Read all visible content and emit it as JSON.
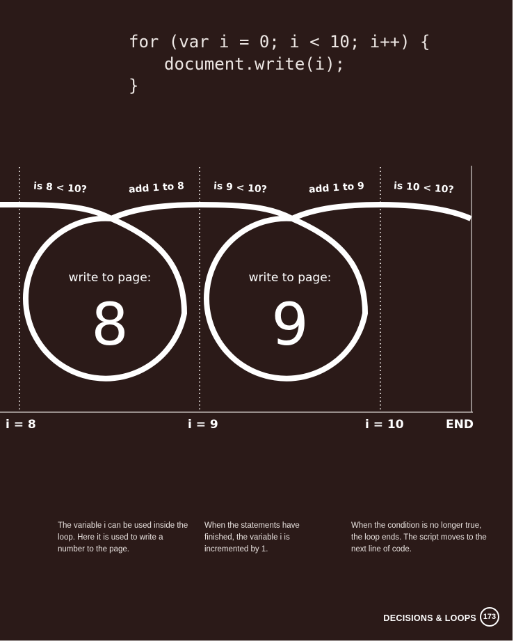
{
  "code": {
    "line1": "for (var i = 0; i < 10; i++) {",
    "line2": "document.write(i);",
    "line3": "}"
  },
  "diagram": {
    "conditions": [
      "is 8 < 10?",
      "is 9 < 10?",
      "is 10 < 10?"
    ],
    "increments": [
      "add 1 to 8",
      "add 1 to 9"
    ],
    "write_label": "write to page:",
    "written_values": [
      "8",
      "9"
    ],
    "i_values": [
      "i = 8",
      "i = 9",
      "i = 10"
    ],
    "end_label": "END"
  },
  "captions": [
    "The variable i can be used inside the loop. Here it is used to write a number to the page.",
    "When the statements have finished, the variable i is incremented by 1.",
    "When the condition is no longer true, the loop ends. The script moves to the next line of code."
  ],
  "footer": {
    "section_title": "DECISIONS & LOOPS",
    "page_number": "173"
  },
  "colors": {
    "background": "#2b1a18",
    "foreground": "#ffffff"
  }
}
